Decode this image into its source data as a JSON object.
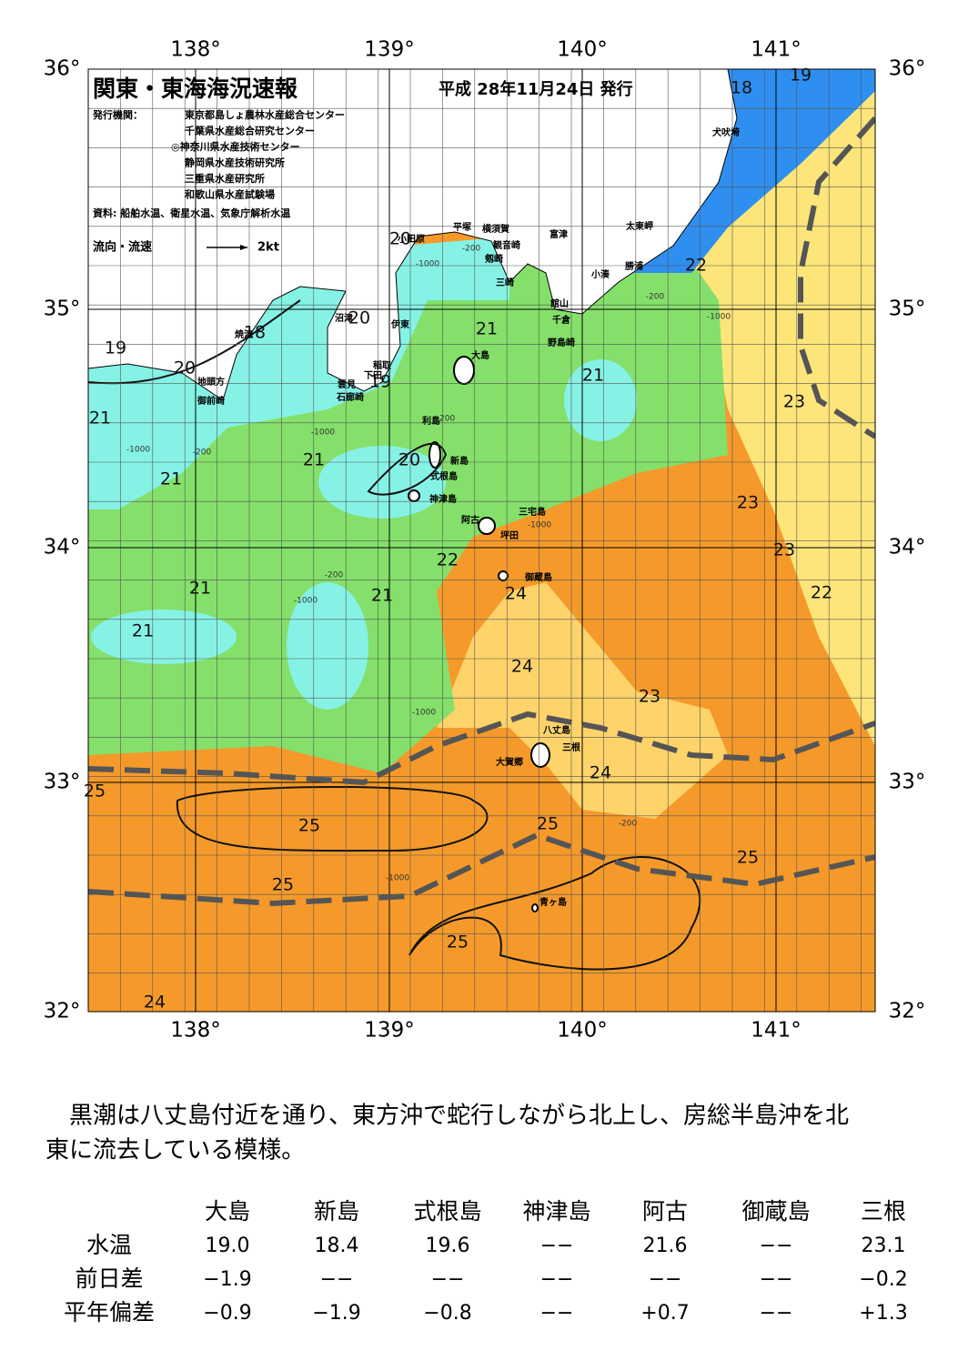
{
  "header": {
    "title": "関東・東海海況速報",
    "date": "平成 28年11月24日 発行",
    "publisher_label": "発行機関：",
    "publishers": [
      "東京都島しょ農林水産総合センター",
      "千葉県水産総合研究センター",
      "◎神奈川県水産技術センター",
      "静岡県水産技術研究所",
      "三重県水産研究所",
      "和歌山県水産試験場"
    ],
    "source": "資料: 船舶水温、衛星水温、気象庁解析水温",
    "legend_label": "流向・流速",
    "legend_scale": "2kt"
  },
  "map": {
    "lon_labels": [
      "138°",
      "139°",
      "140°",
      "141°"
    ],
    "lat_labels": [
      "36°",
      "35°",
      "34°",
      "33°",
      "32°"
    ],
    "isotherm_labels": [
      "19",
      "18",
      "22",
      "20",
      "20",
      "21",
      "18",
      "19",
      "20",
      "21",
      "19",
      "23",
      "21",
      "20",
      "21",
      "21",
      "23",
      "23",
      "22",
      "21",
      "24",
      "21",
      "22",
      "21",
      "24",
      "23",
      "24",
      "25",
      "25",
      "25",
      "25",
      "25",
      "25",
      "24"
    ],
    "place_names": [
      "犬吠埼",
      "太東岬",
      "小田原",
      "平塚",
      "横須賀",
      "観音崎",
      "富津",
      "剱崎",
      "勝浦",
      "小湊",
      "三崎",
      "館山",
      "千倉",
      "野島崎",
      "沼津",
      "伊東",
      "焼津",
      "大島",
      "稲取",
      "下田",
      "地頭方",
      "雲見",
      "石廊崎",
      "御前崎",
      "利島",
      "新島",
      "式根島",
      "神津島",
      "三宅島",
      "阿古",
      "坪田",
      "御蔵島",
      "八丈島",
      "三根",
      "大賀郷",
      "青ヶ島"
    ],
    "depth_labels": [
      "-200",
      "-1000",
      "-200",
      "-1000",
      "-200",
      "-1000",
      "-200",
      "-1000",
      "-200",
      "-1000",
      "-1000",
      "-1000",
      "-200",
      "-1000"
    ]
  },
  "summary": [
    "　黒潮は八丈島付近を通り、東方沖で蛇行しながら北上し、房総半島沖を北",
    "東に流去している模様。"
  ],
  "table": {
    "columns": [
      "大島",
      "新島",
      "式根島",
      "神津島",
      "阿古",
      "御蔵島",
      "三根"
    ],
    "rows": [
      {
        "label": "水温",
        "cells": [
          "19.0",
          "18.4",
          "19.6",
          "−−",
          "21.6",
          "−−",
          "23.1"
        ]
      },
      {
        "label": "前日差",
        "cells": [
          "−1.9",
          "−−",
          "−−",
          "−−",
          "−−",
          "−−",
          "−0.2"
        ]
      },
      {
        "label": "平年偏差",
        "cells": [
          "−0.9",
          "−1.9",
          "−0.8",
          "−−",
          "+0.7",
          "−−",
          "+1.3"
        ]
      }
    ]
  }
}
